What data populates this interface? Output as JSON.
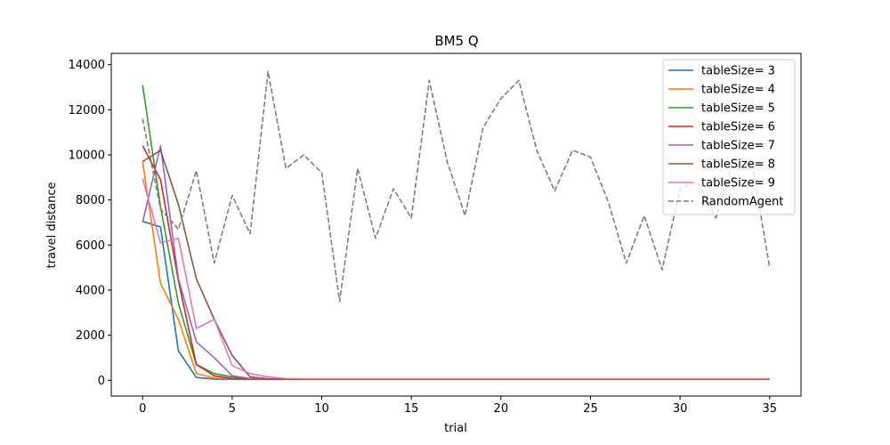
{
  "chart_data": {
    "type": "line",
    "title": "BM5  Q",
    "xlabel": "trial",
    "ylabel": "travel distance",
    "xlim": [
      -1.75,
      36.75
    ],
    "ylim": [
      -700,
      14500
    ],
    "xticks": [
      0,
      5,
      10,
      15,
      20,
      25,
      30,
      35
    ],
    "yticks": [
      0,
      2000,
      4000,
      6000,
      8000,
      10000,
      12000,
      14000
    ],
    "grid": false,
    "legend_position": "top-right",
    "x": [
      0,
      1,
      2,
      3,
      4,
      5,
      6,
      7,
      8,
      9,
      10,
      11,
      12,
      13,
      14,
      15,
      16,
      17,
      18,
      19,
      20,
      21,
      22,
      23,
      24,
      25,
      26,
      27,
      28,
      29,
      30,
      31,
      32,
      33,
      34,
      35
    ],
    "series": [
      {
        "name": "tableSize= 3",
        "color": "#1f77b4",
        "dashed": false,
        "values": [
          7050,
          6800,
          1300,
          120,
          50,
          40,
          40,
          40,
          40,
          40,
          40,
          40,
          40,
          40,
          40,
          40,
          40,
          40,
          40,
          40,
          40,
          40,
          40,
          40,
          40,
          40,
          40,
          40,
          40,
          40,
          40,
          40,
          40,
          40,
          40,
          40
        ]
      },
      {
        "name": "tableSize= 4",
        "color": "#ff7f0e",
        "dashed": false,
        "values": [
          9700,
          4300,
          2700,
          300,
          100,
          60,
          50,
          50,
          50,
          50,
          50,
          50,
          50,
          50,
          50,
          50,
          50,
          50,
          50,
          50,
          50,
          50,
          50,
          50,
          50,
          50,
          50,
          50,
          50,
          50,
          50,
          50,
          50,
          50,
          50,
          50
        ]
      },
      {
        "name": "tableSize= 5",
        "color": "#2ca02c",
        "dashed": false,
        "values": [
          13100,
          7700,
          3400,
          700,
          300,
          150,
          60,
          50,
          50,
          50,
          50,
          50,
          50,
          50,
          50,
          50,
          50,
          50,
          50,
          50,
          50,
          50,
          50,
          50,
          50,
          50,
          50,
          50,
          50,
          50,
          50,
          50,
          50,
          50,
          50,
          50
        ]
      },
      {
        "name": "tableSize= 6",
        "color": "#d62728",
        "dashed": false,
        "values": [
          10400,
          8900,
          4400,
          700,
          200,
          80,
          60,
          50,
          50,
          50,
          50,
          50,
          50,
          50,
          50,
          50,
          50,
          50,
          50,
          50,
          50,
          50,
          50,
          50,
          50,
          50,
          50,
          50,
          50,
          50,
          50,
          50,
          50,
          50,
          50,
          50
        ]
      },
      {
        "name": "tableSize= 7",
        "color": "#9467bd",
        "dashed": false,
        "values": [
          7000,
          10400,
          4500,
          1700,
          1000,
          200,
          80,
          60,
          60,
          60,
          60,
          60,
          60,
          60,
          60,
          60,
          60,
          60,
          60,
          60,
          60,
          60,
          60,
          60,
          60,
          60,
          60,
          60,
          60,
          60,
          60,
          60,
          60,
          60,
          60,
          60
        ]
      },
      {
        "name": "tableSize= 8",
        "color": "#8c564b",
        "dashed": false,
        "values": [
          9700,
          10200,
          7800,
          4500,
          2700,
          1100,
          150,
          70,
          60,
          60,
          60,
          60,
          60,
          60,
          60,
          60,
          60,
          60,
          60,
          60,
          60,
          60,
          60,
          60,
          60,
          60,
          60,
          60,
          60,
          60,
          60,
          60,
          60,
          60,
          60,
          60
        ]
      },
      {
        "name": "tableSize= 9",
        "color": "#e377c2",
        "dashed": false,
        "values": [
          8950,
          6100,
          6300,
          2300,
          2700,
          650,
          300,
          150,
          80,
          70,
          70,
          70,
          70,
          70,
          70,
          70,
          70,
          70,
          70,
          70,
          70,
          70,
          70,
          70,
          70,
          70,
          70,
          70,
          70,
          70,
          70,
          70,
          70,
          70,
          70,
          70
        ]
      },
      {
        "name": "RandomAgent",
        "color": "#7f7f7f",
        "dashed": true,
        "values": [
          11600,
          7600,
          6700,
          9300,
          5200,
          8200,
          6500,
          13700,
          9400,
          10000,
          9200,
          3500,
          9400,
          6300,
          8500,
          7200,
          13300,
          9700,
          7300,
          11200,
          12500,
          13300,
          10200,
          8400,
          10200,
          9900,
          7900,
          5200,
          7300,
          4900,
          8500,
          8800,
          7200,
          9800,
          9700,
          5000
        ]
      }
    ]
  }
}
